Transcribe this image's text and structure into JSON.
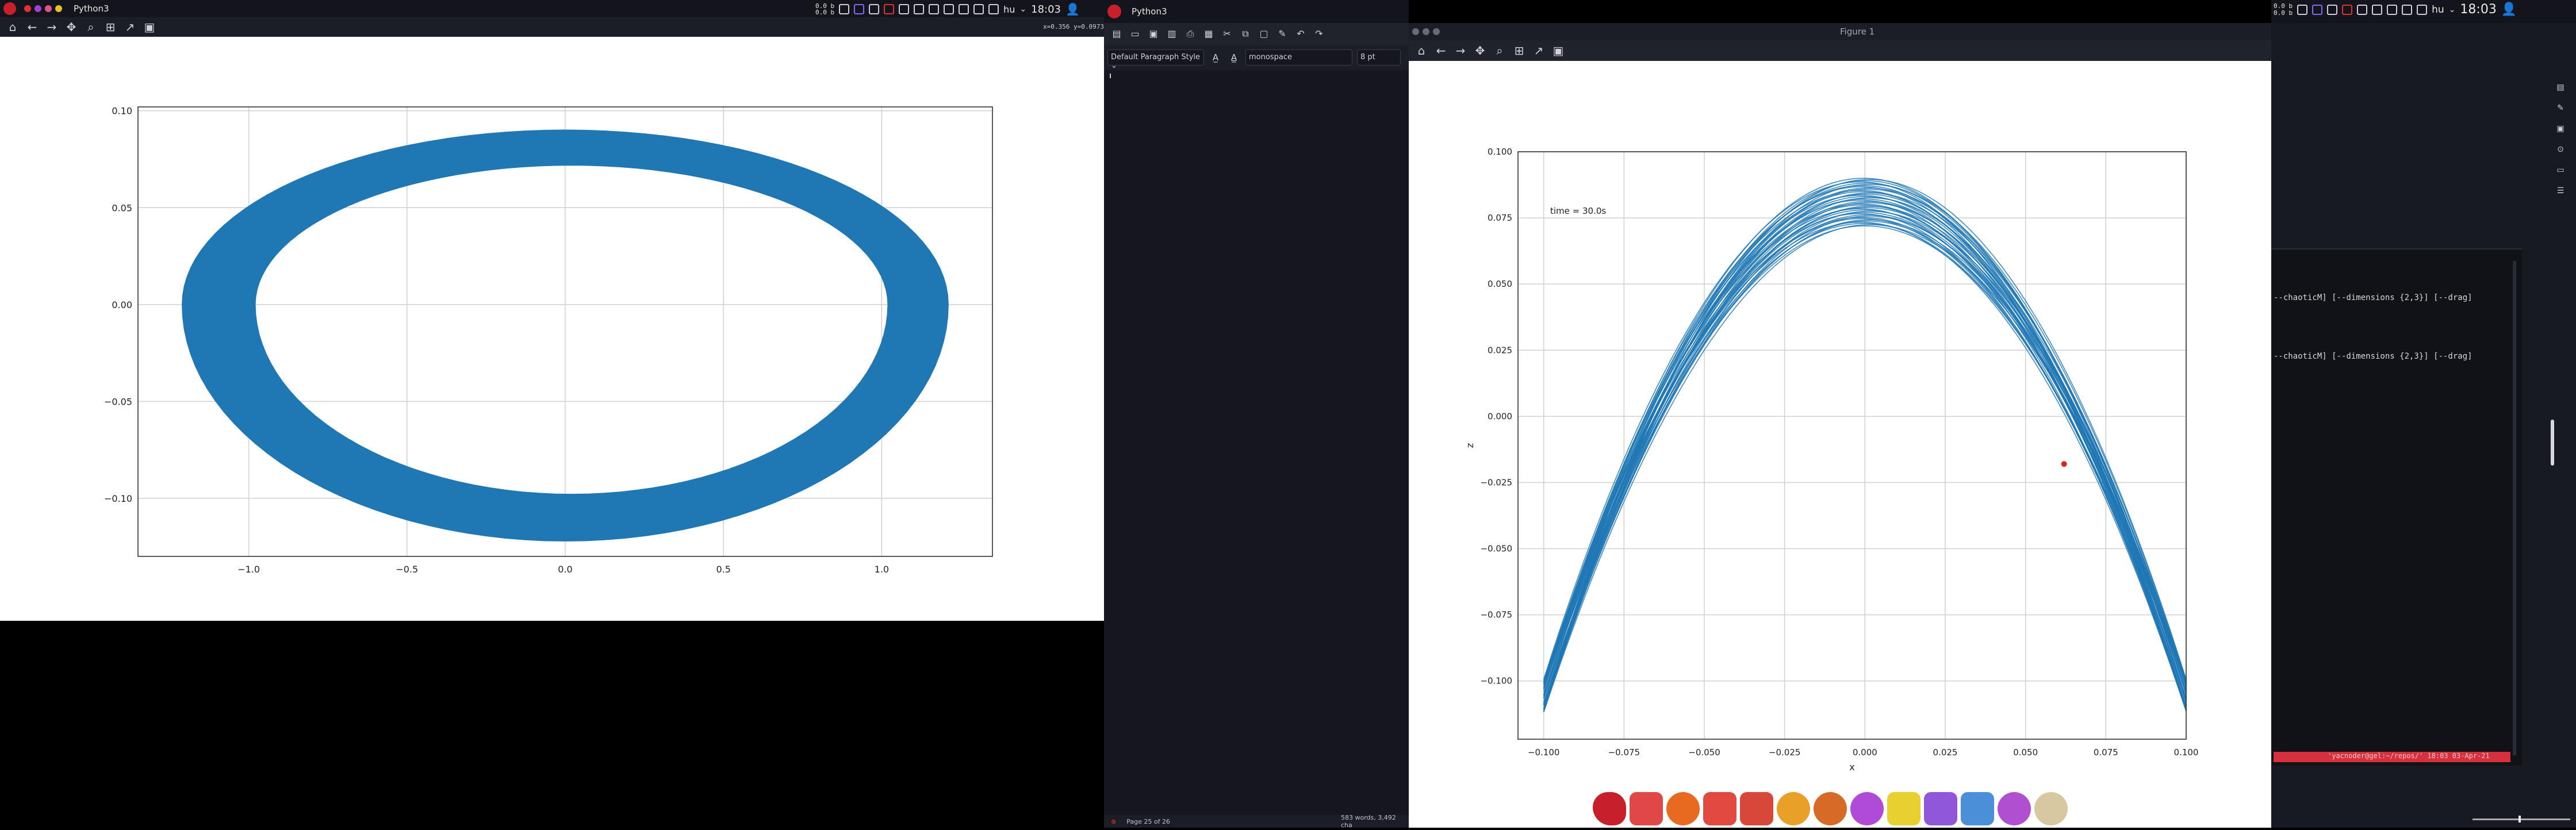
{
  "left_panel": {
    "app_title": "Python3",
    "net_up": "0.0 b",
    "net_down": "0.0 b",
    "lang": "hu",
    "clock": "18:03"
  },
  "left_plot": {
    "coord_readout": "x=0.356 y=0.0973",
    "chart_data": {
      "type": "line",
      "title": "",
      "xlabel": "",
      "ylabel": "",
      "xlim": [
        -1.35,
        1.35
      ],
      "ylim": [
        -0.13,
        0.102
      ],
      "xticks": [
        "−1.0",
        "−0.5",
        "0.0",
        "0.5",
        "1.0"
      ],
      "yticks": [
        "0.10",
        "0.05",
        "0.00",
        "−0.05",
        "−0.10"
      ],
      "grid": true,
      "color": "#1f77b4",
      "series_description_points": {
        "outer_x": [
          -1.22,
          -1.1,
          -0.8,
          -0.4,
          0.0,
          0.4,
          0.8,
          1.1,
          1.22
        ],
        "outer_top_y": [
          0.0,
          0.045,
          0.072,
          0.086,
          0.09,
          0.085,
          0.065,
          0.035,
          0.0
        ],
        "outer_bottom_y": [
          0.0,
          -0.05,
          -0.09,
          -0.115,
          -0.122,
          -0.118,
          -0.09,
          -0.045,
          0.0
        ]
      }
    }
  },
  "middle": {
    "app_title": "Python3",
    "paragraph_style": "Default Paragraph Style",
    "font_name": "monospace",
    "font_size": "8 pt",
    "status_page": "Page 25 of 26",
    "status_words": "583 words, 3,492 cha"
  },
  "figure": {
    "window_title": "Figure 1",
    "annotation": "time = 30.0s",
    "chart_data": {
      "type": "line",
      "title": "",
      "xlabel": "x",
      "ylabel": "z",
      "xlim": [
        -0.1,
        0.1
      ],
      "ylim": [
        -0.122,
        0.1
      ],
      "xticks": [
        "−0.100",
        "−0.075",
        "−0.050",
        "−0.025",
        "0.000",
        "0.025",
        "0.050",
        "0.075",
        "0.100"
      ],
      "yticks": [
        "0.100",
        "0.075",
        "0.050",
        "0.025",
        "0.000",
        "−0.025",
        "−0.050",
        "−0.075",
        "−0.100"
      ],
      "grid": true,
      "color": "#1f77b4",
      "marker": {
        "x": 0.062,
        "y": -0.018,
        "color": "#d62728"
      }
    }
  },
  "terminal": {
    "line1": "--chaoticM] [--dimensions {2,3}] [--drag]",
    "line2": "--chaoticM] [--dimensions {2,3}] [--drag]",
    "prompt": "'yacnoder@gel:~/repos/' 18:03 03-Apr-21"
  },
  "right_panel": {
    "net_up": "0.0 b",
    "net_down": "0.0 b",
    "lang": "hu",
    "clock": "18:03"
  },
  "colors": {
    "plot_blue": "#1f77b4",
    "panel_bg": "#14141c",
    "accent_red": "#e0312e"
  }
}
